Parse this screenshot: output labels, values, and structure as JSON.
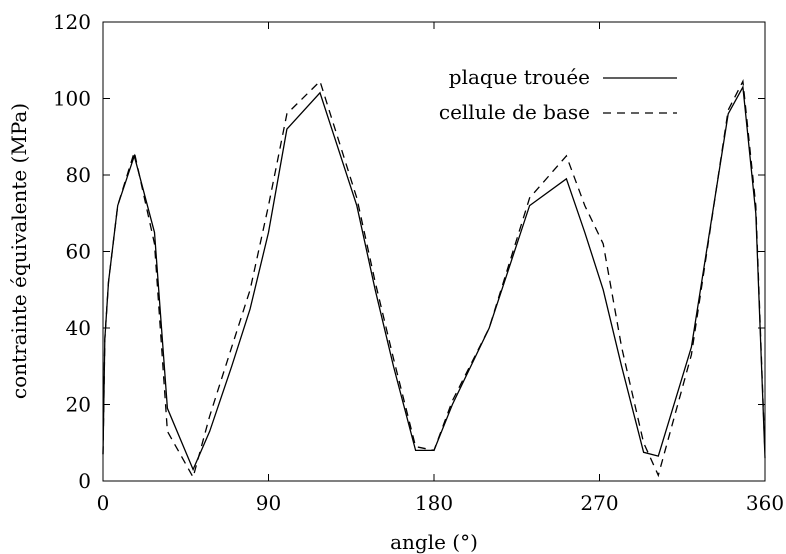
{
  "chart_data": {
    "type": "line",
    "xlabel": "angle (°)",
    "ylabel": "contrainte équivalente (MPa)",
    "xlim": [
      0,
      360
    ],
    "ylim": [
      0,
      120
    ],
    "xticks": [
      0,
      90,
      180,
      270,
      360
    ],
    "yticks": [
      0,
      20,
      40,
      60,
      80,
      100,
      120
    ],
    "grid": false,
    "legend_position": "top-right",
    "series": [
      {
        "name": "plaque trouée",
        "style": "solid",
        "color": "#000000",
        "x": [
          0,
          1,
          3,
          8,
          17,
          28,
          35,
          49,
          58,
          70,
          80,
          90,
          100,
          118,
          138,
          148,
          158,
          170,
          180,
          190,
          210,
          232,
          252,
          262,
          272,
          282,
          294,
          302,
          320,
          340,
          348,
          355,
          360
        ],
        "y": [
          7,
          37,
          52,
          72,
          85,
          65,
          19,
          3,
          13,
          30,
          45,
          65,
          92,
          101.5,
          72,
          50,
          30,
          8,
          8,
          20,
          40,
          72,
          79,
          65,
          50,
          30,
          7.5,
          6.5,
          35,
          96,
          103,
          70,
          6
        ]
      },
      {
        "name": "cellule de base",
        "style": "dashed",
        "color": "#000000",
        "x": [
          0,
          1,
          3,
          8,
          17,
          28,
          35,
          49,
          58,
          70,
          80,
          90,
          100,
          118,
          138,
          148,
          158,
          170,
          180,
          190,
          210,
          232,
          252,
          262,
          272,
          282,
          294,
          302,
          320,
          340,
          348,
          355,
          360
        ],
        "y": [
          7,
          37,
          52,
          72,
          86,
          62,
          13,
          1,
          17,
          35,
          50,
          72,
          96,
          104.5,
          74,
          52,
          32,
          9,
          8,
          21,
          40,
          74,
          85,
          72,
          62,
          35,
          10,
          1.5,
          33,
          97,
          104.5,
          72,
          7
        ]
      }
    ]
  }
}
